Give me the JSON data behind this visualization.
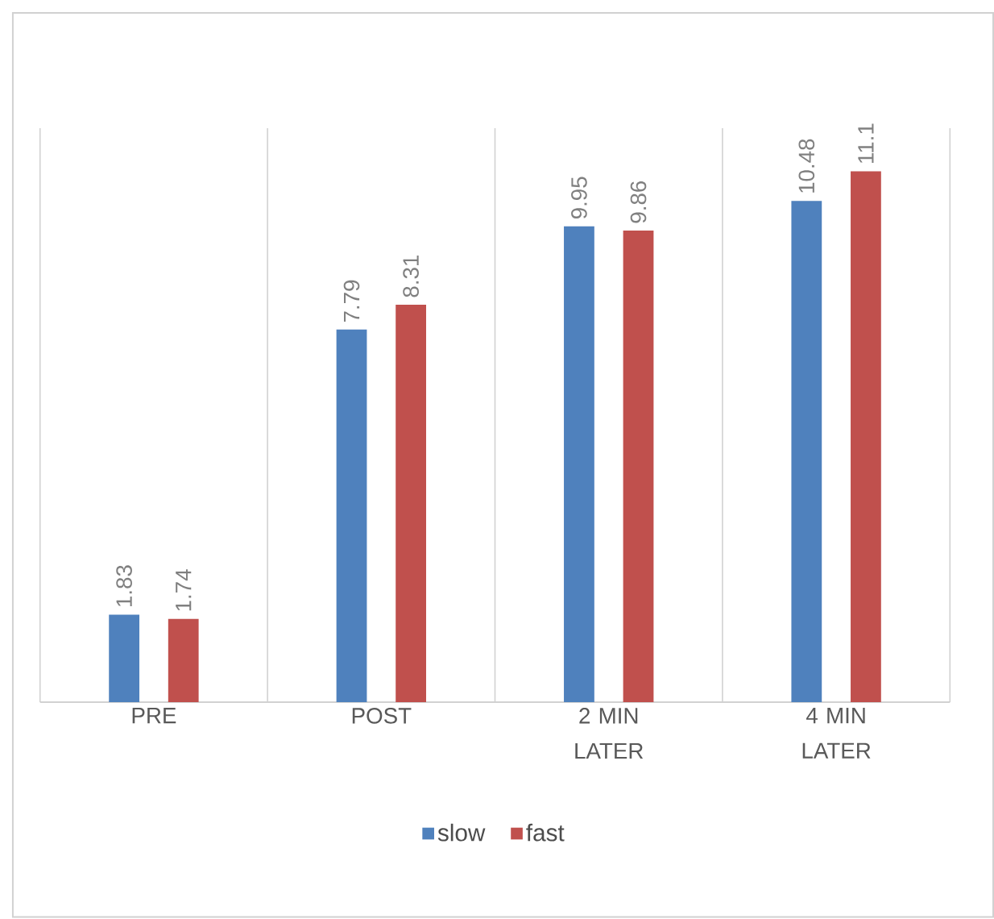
{
  "chart_data": {
    "type": "bar",
    "categories": [
      "PRE",
      "POST",
      "2 MIN LATER",
      "4 MIN LATER"
    ],
    "series": [
      {
        "name": "slow",
        "color": "#4f81bd",
        "values": [
          1.83,
          7.79,
          9.95,
          10.48
        ]
      },
      {
        "name": "fast",
        "color": "#c0504d",
        "values": [
          1.74,
          8.31,
          9.86,
          11.1
        ]
      }
    ],
    "ylim": [
      0,
      12
    ],
    "tick_labels": "x",
    "grid": "x",
    "legend": "bottom",
    "data_labels": true
  }
}
